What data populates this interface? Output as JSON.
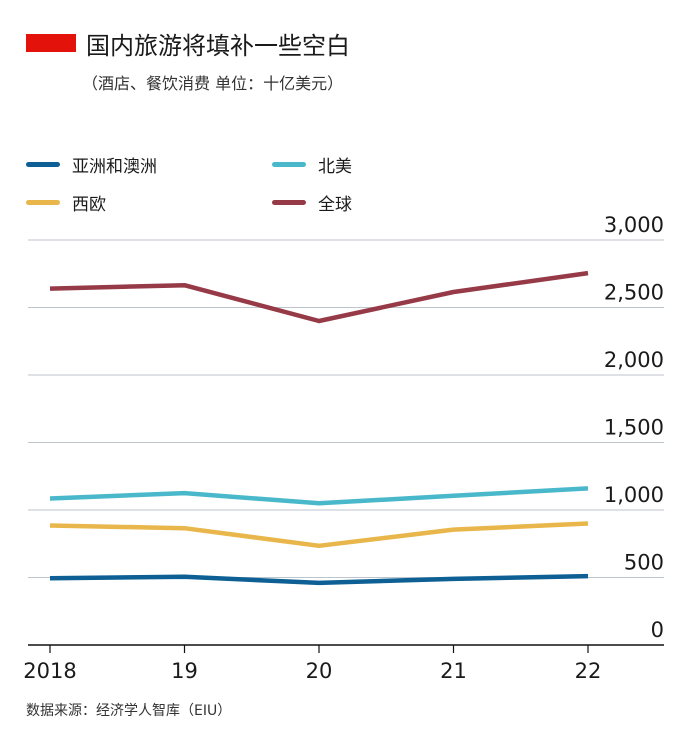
{
  "header": {
    "title": "国内旅游将填补一些空白",
    "subtitle": "（酒店、餐饮消费  单位：十亿美元）",
    "title_marker_color": "#e3120b"
  },
  "legend": [
    {
      "name": "亚洲和澳洲",
      "color": "#0d5f94"
    },
    {
      "name": "北美",
      "color": "#4ab8cb"
    },
    {
      "name": "西欧",
      "color": "#e8b64b"
    },
    {
      "name": "全球",
      "color": "#963a47"
    }
  ],
  "source": "数据来源：经济学人智库（EIU）",
  "chart_data": {
    "type": "line",
    "x": [
      "2018",
      "19",
      "20",
      "21",
      "22"
    ],
    "ylim": [
      0,
      3000
    ],
    "yticks": [
      "0",
      "500",
      "1,000",
      "1,500",
      "2,000",
      "2,500",
      "3,000"
    ],
    "ytick_values": [
      0,
      500,
      1000,
      1500,
      2000,
      2500,
      3000
    ],
    "grid": true,
    "legend_position": "top-left",
    "series": [
      {
        "name": "亚洲和澳洲",
        "color": "#0d5f94",
        "values": [
          495,
          505,
          460,
          490,
          510
        ]
      },
      {
        "name": "北美",
        "color": "#4ab8cb",
        "values": [
          1085,
          1125,
          1050,
          1105,
          1160
        ]
      },
      {
        "name": "西欧",
        "color": "#e8b64b",
        "values": [
          885,
          865,
          735,
          855,
          900
        ]
      },
      {
        "name": "全球",
        "color": "#963a47",
        "values": [
          2640,
          2665,
          2400,
          2615,
          2755
        ]
      }
    ]
  }
}
